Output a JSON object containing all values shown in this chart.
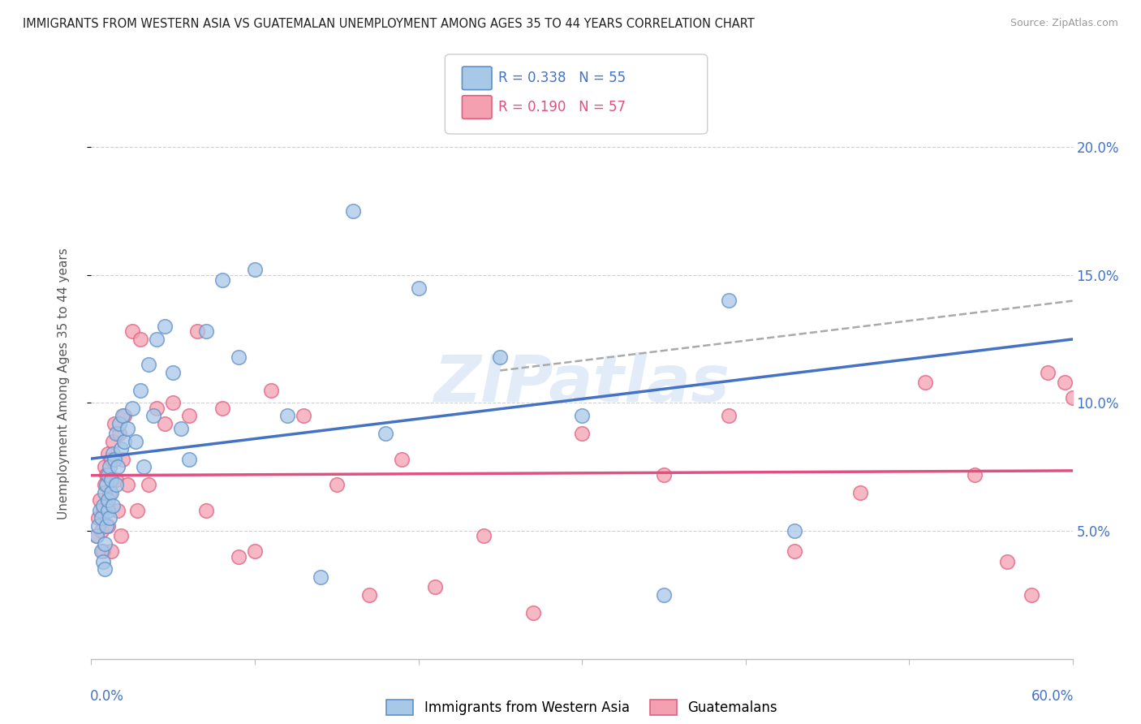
{
  "title": "IMMIGRANTS FROM WESTERN ASIA VS GUATEMALAN UNEMPLOYMENT AMONG AGES 35 TO 44 YEARS CORRELATION CHART",
  "source": "Source: ZipAtlas.com",
  "ylabel": "Unemployment Among Ages 35 to 44 years",
  "ytick_labels": [
    "5.0%",
    "10.0%",
    "15.0%",
    "20.0%"
  ],
  "ytick_values": [
    0.05,
    0.1,
    0.15,
    0.2
  ],
  "xlim": [
    0.0,
    0.6
  ],
  "ylim": [
    0.0,
    0.215
  ],
  "legend_r1": "R = 0.338",
  "legend_n1": "N = 55",
  "legend_r2": "R = 0.190",
  "legend_n2": "N = 57",
  "color_blue": "#a8c8e8",
  "color_pink": "#f4a0b0",
  "color_blue_edge": "#6090c8",
  "color_pink_edge": "#e06080",
  "color_blue_line": "#4472c4",
  "color_pink_line": "#e05080",
  "color_blue_text": "#4472c4",
  "color_pink_text": "#e05080",
  "watermark": "ZIPatlas",
  "background_color": "#ffffff",
  "grid_color": "#d0d0d0",
  "blue_x": [
    0.003,
    0.004,
    0.005,
    0.006,
    0.006,
    0.007,
    0.007,
    0.008,
    0.008,
    0.008,
    0.009,
    0.009,
    0.01,
    0.01,
    0.01,
    0.011,
    0.011,
    0.012,
    0.012,
    0.013,
    0.013,
    0.014,
    0.015,
    0.015,
    0.016,
    0.017,
    0.018,
    0.019,
    0.02,
    0.022,
    0.025,
    0.027,
    0.03,
    0.032,
    0.035,
    0.038,
    0.04,
    0.045,
    0.05,
    0.055,
    0.06,
    0.07,
    0.08,
    0.09,
    0.1,
    0.12,
    0.14,
    0.16,
    0.18,
    0.2,
    0.25,
    0.3,
    0.35,
    0.39,
    0.43
  ],
  "blue_y": [
    0.048,
    0.052,
    0.058,
    0.055,
    0.042,
    0.06,
    0.038,
    0.065,
    0.045,
    0.035,
    0.052,
    0.068,
    0.058,
    0.072,
    0.062,
    0.055,
    0.075,
    0.065,
    0.07,
    0.06,
    0.08,
    0.078,
    0.068,
    0.088,
    0.075,
    0.092,
    0.082,
    0.095,
    0.085,
    0.09,
    0.098,
    0.085,
    0.105,
    0.075,
    0.115,
    0.095,
    0.125,
    0.13,
    0.112,
    0.09,
    0.078,
    0.128,
    0.148,
    0.118,
    0.152,
    0.095,
    0.032,
    0.175,
    0.088,
    0.145,
    0.118,
    0.095,
    0.025,
    0.14,
    0.05
  ],
  "pink_x": [
    0.003,
    0.004,
    0.005,
    0.006,
    0.007,
    0.007,
    0.008,
    0.008,
    0.009,
    0.009,
    0.01,
    0.01,
    0.011,
    0.012,
    0.012,
    0.013,
    0.014,
    0.015,
    0.016,
    0.017,
    0.018,
    0.019,
    0.02,
    0.022,
    0.025,
    0.028,
    0.03,
    0.035,
    0.04,
    0.045,
    0.05,
    0.06,
    0.065,
    0.07,
    0.08,
    0.09,
    0.1,
    0.11,
    0.13,
    0.15,
    0.17,
    0.19,
    0.21,
    0.24,
    0.27,
    0.3,
    0.35,
    0.39,
    0.43,
    0.47,
    0.51,
    0.54,
    0.56,
    0.575,
    0.585,
    0.595,
    0.6
  ],
  "pink_y": [
    0.048,
    0.055,
    0.062,
    0.05,
    0.058,
    0.042,
    0.068,
    0.075,
    0.072,
    0.06,
    0.052,
    0.08,
    0.065,
    0.042,
    0.078,
    0.085,
    0.092,
    0.07,
    0.058,
    0.088,
    0.048,
    0.078,
    0.095,
    0.068,
    0.128,
    0.058,
    0.125,
    0.068,
    0.098,
    0.092,
    0.1,
    0.095,
    0.128,
    0.058,
    0.098,
    0.04,
    0.042,
    0.105,
    0.095,
    0.068,
    0.025,
    0.078,
    0.028,
    0.048,
    0.018,
    0.088,
    0.072,
    0.095,
    0.042,
    0.065,
    0.108,
    0.072,
    0.038,
    0.025,
    0.112,
    0.108,
    0.102
  ]
}
